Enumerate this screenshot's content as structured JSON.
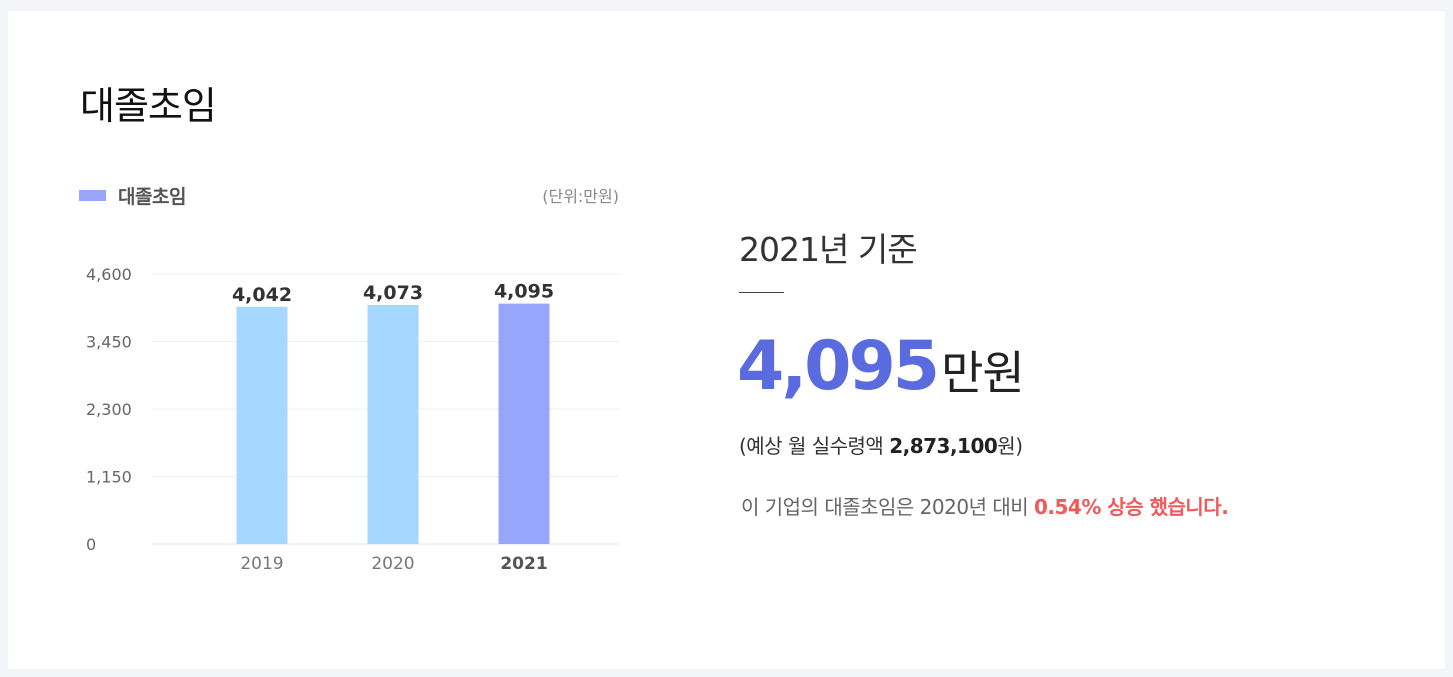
{
  "section": {
    "title": "대졸초임"
  },
  "chart_data": {
    "type": "bar",
    "title": "",
    "xlabel": "",
    "ylabel": "",
    "unit_label": "(단위:만원)",
    "legend": [
      "대졸초임"
    ],
    "legend_position": "top-left",
    "categories": [
      "2019",
      "2020",
      "2021"
    ],
    "series": [
      {
        "name": "대졸초임",
        "values": [
          4042,
          4073,
          4095
        ]
      }
    ],
    "data_labels": [
      "4,042",
      "4,073",
      "4,095"
    ],
    "highlight_category": "2021",
    "yticks": [
      0,
      1150,
      2300,
      3450,
      4600
    ],
    "ytick_labels": [
      "0",
      "1,150",
      "2,300",
      "3,450",
      "4,600"
    ],
    "ylim": [
      0,
      4600
    ],
    "grid": true,
    "colors": {
      "bar": "#a6d8ff",
      "bar_highlight": "#97a6fb"
    }
  },
  "summary": {
    "basis_title": "2021년 기준",
    "salary_value": "4,095",
    "salary_unit": "만원",
    "monthly_prefix": "(예상 월 실수령액 ",
    "monthly_value": "2,873,100",
    "monthly_suffix": "원)",
    "compare_prefix": "이 기업의 대졸초임은 2020년 대비 ",
    "compare_highlight": "0.54% 상승 했습니다.",
    "accent_color": "#5a6be0",
    "highlight_color": "#ef5a5a"
  }
}
